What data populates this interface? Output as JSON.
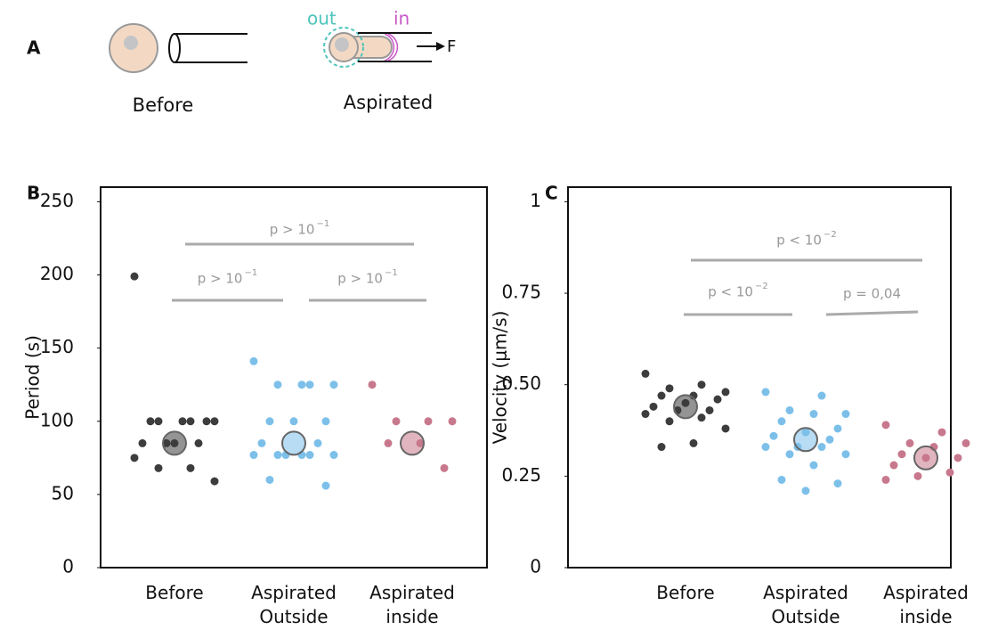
{
  "panel_a": {
    "label": "A",
    "before": "Before",
    "aspirated": "Aspirated",
    "out": "out",
    "in": "in",
    "force": "F"
  },
  "chart_data": [
    {
      "type": "strip",
      "label": "B",
      "y_label": "Period (s)",
      "categories": [
        "Before",
        "Aspirated Outside",
        "Aspirated inside"
      ],
      "ylim": [
        0,
        260
      ],
      "yticks": [
        0,
        50,
        100,
        150,
        200,
        250
      ],
      "groups": [
        {
          "color": "#3d3d3d",
          "mean": 85,
          "values": [
            199,
            100,
            100,
            100,
            100,
            100,
            100,
            85,
            85,
            85,
            85,
            75,
            68,
            68,
            59
          ]
        },
        {
          "color": "#7cc0ea",
          "mean": 85,
          "values": [
            141,
            125,
            125,
            125,
            125,
            100,
            100,
            100,
            85,
            85,
            77,
            77,
            77,
            77,
            77,
            77,
            60,
            56
          ]
        },
        {
          "color": "#c8788c",
          "mean": 85,
          "values": [
            125,
            100,
            100,
            100,
            85,
            85,
            68
          ]
        }
      ],
      "annotations": [
        {
          "text": "p > 10",
          "sup": "−1"
        },
        {
          "text": "p > 10",
          "sup": "−1"
        },
        {
          "text": "p > 10",
          "sup": "−1"
        }
      ]
    },
    {
      "type": "strip",
      "label": "C",
      "y_label": "Velocity (μm/s)",
      "categories": [
        "Before",
        "Aspirated Outside",
        "Aspirated inside"
      ],
      "ylim": [
        0,
        1.04
      ],
      "yticks": [
        0,
        0.25,
        {
          "value": 0.5,
          "label": "0.50"
        },
        0.75,
        1
      ],
      "groups": [
        {
          "color": "#3d3d3d",
          "mean": 0.44,
          "values": [
            0.53,
            0.5,
            0.49,
            0.48,
            0.47,
            0.47,
            0.46,
            0.45,
            0.44,
            0.43,
            0.43,
            0.42,
            0.41,
            0.4,
            0.38,
            0.34,
            0.33
          ]
        },
        {
          "color": "#7cc0ea",
          "mean": 0.35,
          "values": [
            0.48,
            0.47,
            0.43,
            0.42,
            0.42,
            0.4,
            0.38,
            0.37,
            0.36,
            0.35,
            0.33,
            0.33,
            0.33,
            0.31,
            0.31,
            0.28,
            0.24,
            0.23,
            0.21
          ]
        },
        {
          "color": "#c8788c",
          "mean": 0.3,
          "values": [
            0.39,
            0.37,
            0.34,
            0.34,
            0.33,
            0.31,
            0.3,
            0.3,
            0.28,
            0.26,
            0.25,
            0.24
          ]
        }
      ],
      "annotations": [
        {
          "text": "p < 10",
          "sup": "−2"
        },
        {
          "text": "p < 10",
          "sup": "−2"
        },
        {
          "text": "p = 0,04",
          "sup": null
        }
      ]
    }
  ]
}
